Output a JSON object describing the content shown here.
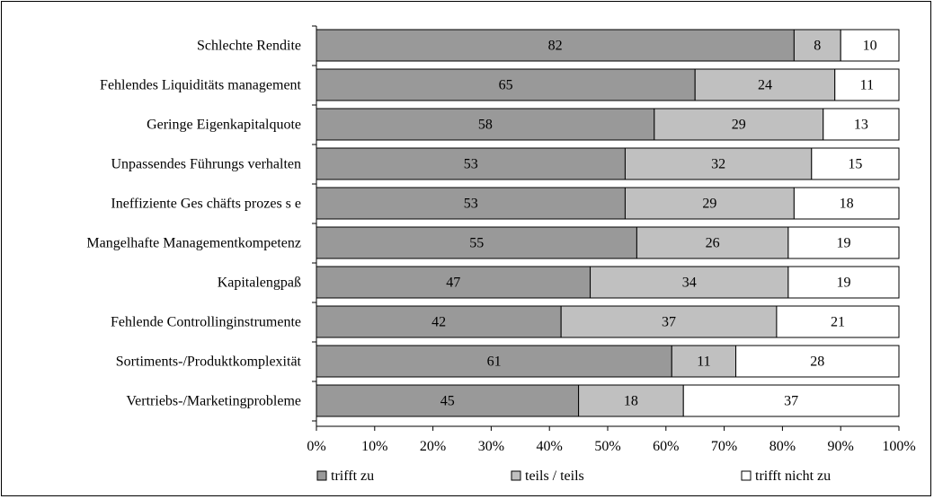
{
  "chart_data": {
    "type": "bar",
    "orientation": "horizontal",
    "stacked": "percent",
    "categories": [
      "Schlechte Rendite",
      "Fehlendes Liquiditäts management",
      "Geringe Eigenkapitalquote",
      "Unpassendes Führungs verhalten",
      "Ineffiziente Ges chäfts prozes s e",
      "Mangelhafte Managementkompetenz",
      "Kapitalengpaß",
      "Fehlende Controllinginstrumente",
      "Sortiments-/Produktkomplexität",
      "Vertriebs-/Marketingprobleme"
    ],
    "series": [
      {
        "name": "trifft zu",
        "color": "#999999",
        "values": [
          82,
          65,
          58,
          53,
          53,
          55,
          47,
          42,
          61,
          45
        ]
      },
      {
        "name": "teils / teils",
        "color": "#c0c0c0",
        "values": [
          8,
          24,
          29,
          32,
          29,
          26,
          34,
          37,
          11,
          18
        ]
      },
      {
        "name": "trifft nicht zu",
        "color": "#ffffff",
        "values": [
          10,
          11,
          13,
          15,
          18,
          19,
          19,
          21,
          28,
          37
        ]
      }
    ],
    "xlim": [
      0,
      100
    ],
    "xticks": [
      "0%",
      "10%",
      "20%",
      "30%",
      "40%",
      "50%",
      "60%",
      "70%",
      "80%",
      "90%",
      "100%"
    ],
    "grid": false,
    "legend_position": "bottom"
  }
}
